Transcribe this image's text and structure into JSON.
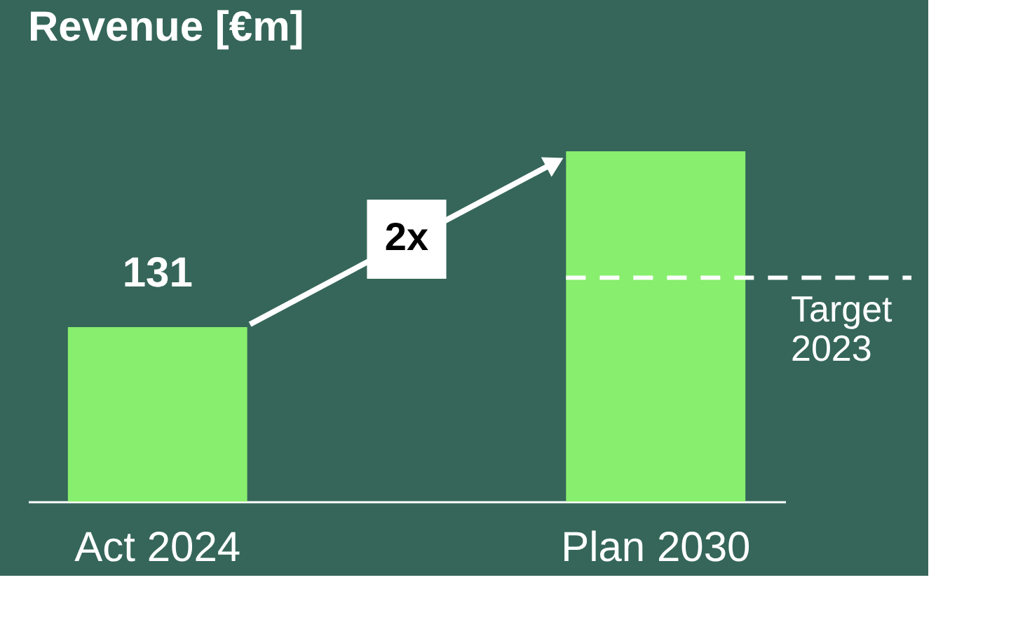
{
  "chart_data": {
    "type": "bar",
    "title": "Revenue [€m]",
    "categories": [
      "Act 2024",
      "Plan 2030"
    ],
    "values": [
      131,
      263
    ],
    "value_labels": [
      "131",
      null
    ],
    "color": "#88ee6e",
    "ylim": [
      0,
      263
    ],
    "annotations": [
      "2x"
    ],
    "ref_lines": [
      {
        "axis": "y",
        "value": 168,
        "label": "Target 2023",
        "color": "#ffffff",
        "line_style": "dashed"
      }
    ],
    "grid": false
  }
}
